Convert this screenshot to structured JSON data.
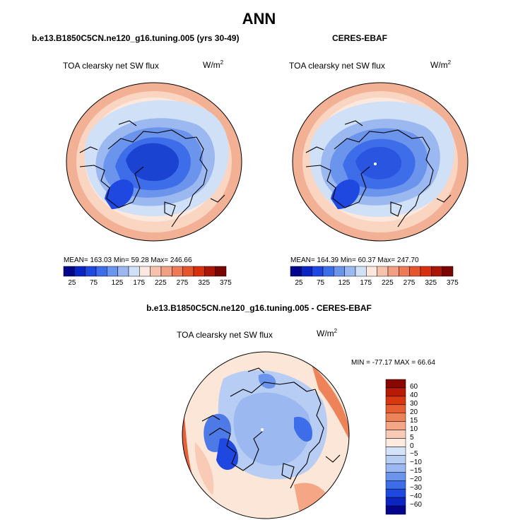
{
  "figure": {
    "title": "ANN",
    "variable_label": "TOA clearsky net SW flux",
    "units_base": "W/m",
    "units_exp": "2"
  },
  "panels": {
    "model": {
      "title": "b.e13.B1850C5CN.ne120_g16.tuning.005 (yrs 30-49)",
      "stats_text": "MEAN= 163.03  Min=  59.28  Max= 246.66",
      "mean": 163.03,
      "min": 59.28,
      "max": 246.66
    },
    "obs": {
      "title": "CERES-EBAF",
      "stats_text": "MEAN= 164.39  Min=  60.37  Max= 247.70",
      "mean": 164.39,
      "min": 60.37,
      "max": 247.7
    },
    "diff": {
      "title": "b.e13.B1850C5CN.ne120_g16.tuning.005 - CERES-EBAF",
      "stats_text": "MIN = -77.17  MAX =  66.64",
      "min": -77.17,
      "max": 66.64
    }
  },
  "colorbars": {
    "abs": {
      "colors": [
        "#03058a",
        "#0a25c4",
        "#1f48e0",
        "#3d6de8",
        "#6b94ec",
        "#9bb8f0",
        "#cfe0f7",
        "#fce8dc",
        "#f7c2ac",
        "#f29e82",
        "#ec7a58",
        "#e5532f",
        "#d8300f",
        "#ab1505",
        "#7a0500"
      ],
      "tick_labels": [
        "25",
        "75",
        "125",
        "175",
        "225",
        "275",
        "325",
        "375"
      ]
    },
    "diff": {
      "colors": [
        "#03058a",
        "#0a25c4",
        "#1f48e0",
        "#3d6de8",
        "#6b94ec",
        "#9bb8f0",
        "#b8cdf3",
        "#d5e3f8",
        "#fdebdf",
        "#f9cbb6",
        "#f4a685",
        "#ee8258",
        "#e75e32",
        "#d8380f",
        "#b71b05",
        "#880800"
      ],
      "tick_labels": [
        "60",
        "40",
        "30",
        "20",
        "15",
        "10",
        "5",
        "0",
        "−5",
        "−10",
        "−15",
        "−20",
        "−30",
        "−40",
        "−60"
      ]
    }
  },
  "map_colors": {
    "deep_blue": "#1b43d2",
    "mid_blue": "#3c66e2",
    "light_blue": "#6f97ec",
    "pale_blue": "#cfe0f7",
    "pale_orange": "#f9d5c2",
    "orange": "#f2b094",
    "diff_bg": "#fce6d8",
    "diff_red": "#e6613a",
    "diff_blue": "#4d7ae6"
  }
}
